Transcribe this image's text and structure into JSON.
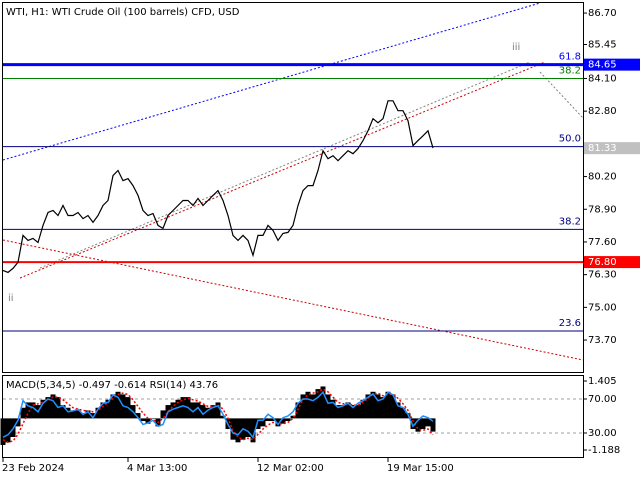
{
  "chart_data": [
    {
      "type": "line",
      "title": "WTI, H1:  WTI Crude Oil (100 barrels) CFD, USD",
      "annotations": [
        "ii",
        "iii"
      ],
      "categories": [
        "23 Feb 2024",
        null,
        null,
        null,
        null,
        null,
        null,
        null,
        null,
        null,
        null,
        null,
        null,
        null,
        null,
        null,
        null,
        null,
        null,
        null,
        null,
        null,
        null,
        null,
        null,
        "4 Mar 13:00",
        null,
        null,
        null,
        null,
        null,
        null,
        null,
        null,
        null,
        null,
        null,
        null,
        null,
        null,
        null,
        null,
        null,
        null,
        null,
        null,
        null,
        null,
        null,
        null,
        null,
        "12 Mar 02:00",
        null,
        null,
        null,
        null,
        null,
        null,
        null,
        null,
        null,
        null,
        null,
        null,
        null,
        null,
        null,
        null,
        null,
        null,
        null,
        null,
        null,
        null,
        null,
        null,
        null,
        "19 Mar 15:00",
        null,
        null,
        null,
        null,
        null,
        null,
        null,
        null,
        null
      ],
      "values": [
        76.47,
        76.39,
        76.55,
        76.79,
        77.86,
        77.66,
        77.74,
        77.58,
        78.26,
        78.77,
        78.85,
        78.65,
        79.05,
        78.65,
        78.65,
        78.77,
        78.53,
        78.65,
        78.38,
        78.65,
        79.05,
        79.25,
        80.24,
        80.44,
        80.04,
        80.12,
        79.84,
        79.45,
        78.85,
        78.65,
        78.73,
        78.26,
        78.14,
        78.65,
        78.85,
        79.05,
        79.25,
        79.25,
        79.05,
        79.33,
        79.05,
        79.25,
        79.45,
        79.64,
        79.25,
        78.65,
        77.86,
        77.66,
        77.86,
        77.66,
        77.07,
        77.86,
        77.86,
        78.26,
        78.06,
        77.66,
        77.94,
        77.98,
        78.26,
        79.05,
        79.64,
        79.84,
        79.84,
        80.44,
        81.23,
        80.91,
        81.03,
        80.83,
        81.03,
        81.23,
        81.11,
        81.31,
        81.63,
        82.02,
        82.5,
        82.34,
        82.5,
        83.21,
        83.21,
        82.82,
        82.82,
        82.42,
        81.43,
        81.63,
        81.82,
        82.02,
        81.33
      ],
      "color": "#000000",
      "ylim": [
        72.43,
        87.1
      ],
      "yticks": [
        {
          "value": 86.7,
          "label": "86.70"
        },
        {
          "value": 85.45,
          "label": "85.45"
        },
        {
          "value": 84.1,
          "label": "84.10"
        },
        {
          "value": 82.8,
          "label": "82.80"
        },
        {
          "value": 80.2,
          "label": "80.20"
        },
        {
          "value": 78.9,
          "label": "78.90"
        },
        {
          "value": 77.6,
          "label": "77.60"
        },
        {
          "value": 76.3,
          "label": "76.30"
        },
        {
          "value": 75,
          "label": "75.00"
        },
        {
          "value": 73.7,
          "label": "73.70"
        }
      ],
      "levels": [
        {
          "value": 84.65,
          "label": "61.8",
          "color": "#0000ff",
          "width": 3
        },
        {
          "value": 84.1,
          "label": "38.2",
          "color": "#008000",
          "width": 1
        },
        {
          "value": 81.39,
          "label": "50.0",
          "color": "#000080",
          "width": 1
        },
        {
          "value": 78.1,
          "label": "38.2",
          "color": "#000080",
          "width": 1
        },
        {
          "value": 74.06,
          "label": "23.6",
          "color": "#000080",
          "width": 1
        },
        {
          "value": 76.8,
          "color": "#ff0000",
          "width": 2
        }
      ],
      "price_tags": [
        {
          "value": 84.65,
          "label": "84.65",
          "color": "#0000ff"
        },
        {
          "value": 81.33,
          "label": "81.33",
          "color": "#c0c0c0"
        },
        {
          "value": 76.8,
          "label": "76.80",
          "color": "#ff0000"
        }
      ]
    },
    {
      "type": "indicator",
      "title": "MACD(5,34,5) -0.497 -0.614 RSI(14) 43.76",
      "ylim": [
        -1.489,
        1.593
      ],
      "yticks": [
        1.405,
        -1.188
      ],
      "y2lim": [
        0.59,
        97.06
      ],
      "y2ticks": [
        {
          "value": 70,
          "label": "70.00"
        },
        {
          "value": 30,
          "label": "30.00"
        }
      ],
      "grid": true,
      "series": [
        {
          "type": "bar",
          "color": "#000000",
          "values": [
            -1.0,
            -0.9,
            -0.7,
            -0.3,
            0.4,
            0.6,
            0.6,
            0.5,
            0.7,
            0.8,
            0.9,
            0.8,
            0.5,
            0.4,
            0.3,
            0.3,
            0.2,
            0.3,
            0.2,
            0.4,
            0.6,
            0.7,
            0.9,
            1.0,
            0.9,
            0.8,
            0.5,
            0.2,
            -0.1,
            -0.2,
            0.0,
            -0.3,
            0.3,
            0.5,
            0.6,
            0.7,
            0.8,
            0.8,
            0.6,
            0.6,
            0.5,
            0.4,
            0.5,
            0.6,
            0.1,
            -0.4,
            -0.8,
            -0.9,
            -0.8,
            -0.7,
            -0.9,
            -0.4,
            -0.3,
            -0.1,
            -0.1,
            -0.3,
            -0.2,
            -0.1,
            0.1,
            0.6,
            0.9,
            1.0,
            0.9,
            1.1,
            1.2,
            0.9,
            0.7,
            0.5,
            0.5,
            0.6,
            0.5,
            0.5,
            0.7,
            0.9,
            1.0,
            0.9,
            0.8,
            1.0,
            0.9,
            0.6,
            0.4,
            0.2,
            -0.4,
            -0.5,
            -0.4,
            -0.3,
            -0.497
          ]
        },
        {
          "type": "line",
          "color": "#ff0000",
          "dashed": true,
          "values": [
            -0.8,
            -0.9,
            -0.85,
            -0.6,
            -0.2,
            0.2,
            0.5,
            0.55,
            0.6,
            0.7,
            0.8,
            0.8,
            0.7,
            0.55,
            0.4,
            0.35,
            0.3,
            0.27,
            0.25,
            0.3,
            0.45,
            0.6,
            0.75,
            0.9,
            0.95,
            0.9,
            0.7,
            0.45,
            0.2,
            0.0,
            -0.05,
            -0.15,
            0.0,
            0.25,
            0.45,
            0.6,
            0.7,
            0.75,
            0.7,
            0.65,
            0.55,
            0.45,
            0.45,
            0.5,
            0.35,
            0.0,
            -0.45,
            -0.7,
            -0.8,
            -0.75,
            -0.8,
            -0.6,
            -0.4,
            -0.25,
            -0.15,
            -0.2,
            -0.2,
            -0.15,
            0.0,
            0.35,
            0.7,
            0.9,
            0.95,
            1.0,
            1.1,
            1.0,
            0.8,
            0.6,
            0.55,
            0.55,
            0.5,
            0.5,
            0.6,
            0.75,
            0.9,
            0.95,
            0.85,
            0.9,
            0.9,
            0.75,
            0.55,
            0.3,
            -0.1,
            -0.4,
            -0.45,
            -0.4,
            -0.614
          ]
        },
        {
          "type": "line",
          "color": "#1e90ff",
          "axis": "y2",
          "values": [
            25,
            28,
            35,
            45,
            68,
            62,
            60,
            55,
            65,
            70,
            68,
            60,
            62,
            55,
            56,
            58,
            52,
            55,
            48,
            58,
            65,
            66,
            75,
            72,
            62,
            60,
            55,
            48,
            40,
            42,
            45,
            38,
            40,
            55,
            58,
            60,
            62,
            60,
            55,
            60,
            52,
            57,
            60,
            62,
            52,
            40,
            30,
            28,
            35,
            32,
            25,
            45,
            45,
            52,
            48,
            40,
            48,
            50,
            55,
            65,
            70,
            70,
            68,
            72,
            78,
            65,
            66,
            60,
            62,
            65,
            60,
            65,
            68,
            72,
            76,
            68,
            70,
            78,
            75,
            62,
            60,
            52,
            38,
            45,
            50,
            48,
            43.76
          ]
        }
      ]
    }
  ]
}
